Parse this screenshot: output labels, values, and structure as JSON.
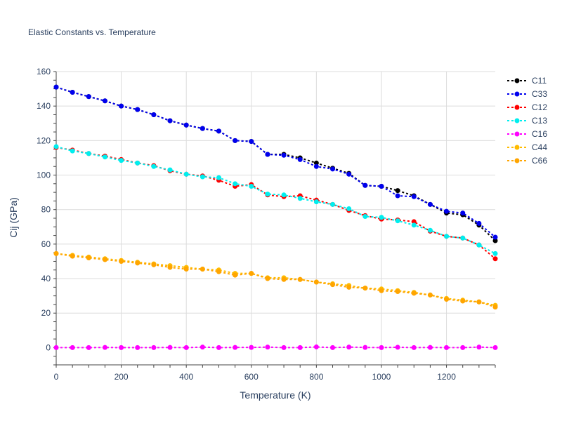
{
  "chart_data": {
    "type": "line",
    "title": "Elastic Constants vs. Temperature",
    "xlabel": "Temperature (K)",
    "ylabel": "Cij (GPa)",
    "xlim": [
      0,
      1350
    ],
    "ylim": [
      -10,
      160
    ],
    "xticks": [
      0,
      200,
      400,
      600,
      800,
      1000,
      1200
    ],
    "yticks": [
      0,
      20,
      40,
      60,
      80,
      100,
      120,
      140,
      160
    ],
    "grid": true,
    "legend_position": "right",
    "x": [
      0,
      50,
      100,
      150,
      200,
      250,
      300,
      350,
      400,
      450,
      500,
      550,
      600,
      650,
      700,
      750,
      800,
      850,
      900,
      950,
      1000,
      1050,
      1100,
      1150,
      1200,
      1250,
      1300,
      1350
    ],
    "series": [
      {
        "name": "C11",
        "color": "#000000",
        "values": [
          151,
          148,
          145.5,
          143,
          140,
          138,
          135,
          131.5,
          129,
          127,
          125.5,
          120,
          119.5,
          112,
          112,
          110,
          107,
          104,
          101,
          94,
          93.5,
          91,
          88,
          83,
          78,
          77,
          71,
          62
        ]
      },
      {
        "name": "C33",
        "color": "#0000ee",
        "values": [
          151,
          148,
          145.5,
          143,
          140,
          138,
          135,
          131.5,
          129,
          127,
          125.5,
          120,
          119.5,
          112,
          111.5,
          109,
          105,
          103.5,
          100.5,
          94,
          93.5,
          88,
          87.5,
          83,
          79,
          78,
          72,
          64
        ]
      },
      {
        "name": "C12",
        "color": "#ff0000",
        "values": [
          116,
          114.5,
          112.5,
          111,
          109,
          107,
          105.5,
          102.5,
          100.5,
          99.5,
          97,
          93.5,
          94.5,
          88.5,
          87.5,
          88,
          85.5,
          83,
          79.5,
          76.5,
          74.5,
          74,
          73,
          67.5,
          64.5,
          63.5,
          59.5,
          51.5
        ]
      },
      {
        "name": "C13",
        "color": "#00eeee",
        "values": [
          116.5,
          114,
          112.5,
          110.5,
          108.5,
          107,
          105,
          103,
          100.5,
          99,
          98.5,
          95,
          93.5,
          89,
          88.5,
          86.5,
          84.5,
          83,
          80.5,
          76,
          75.5,
          73.5,
          71,
          68,
          64.5,
          63.5,
          59.5,
          54.5
        ]
      },
      {
        "name": "C16",
        "color": "#ff00ff",
        "values": [
          0,
          0,
          0,
          0.1,
          0,
          0,
          0,
          0.1,
          0,
          0.3,
          0,
          0.1,
          0.1,
          0.3,
          0,
          0,
          0.4,
          0,
          0.3,
          0.1,
          0,
          0.2,
          0,
          0.1,
          0,
          0,
          0.3,
          0
        ]
      },
      {
        "name": "C44",
        "color": "#ffbb00",
        "values": [
          54.5,
          53.5,
          52.5,
          51.5,
          50.5,
          49.5,
          48.5,
          47.5,
          46.5,
          45.5,
          45,
          43,
          43,
          40.5,
          40.5,
          39.5,
          38,
          37,
          36,
          34.5,
          34,
          33,
          32,
          30.5,
          28.5,
          27.5,
          26.5,
          24.5
        ]
      },
      {
        "name": "C66",
        "color": "#ffa500",
        "values": [
          54.5,
          53,
          52,
          51,
          50,
          49,
          48,
          46.5,
          45.5,
          45.5,
          44,
          42,
          43,
          40,
          39.5,
          39.5,
          38,
          36.5,
          35,
          34.5,
          33,
          32.5,
          31.5,
          30.5,
          28,
          27,
          26.5,
          23.5
        ]
      }
    ]
  }
}
